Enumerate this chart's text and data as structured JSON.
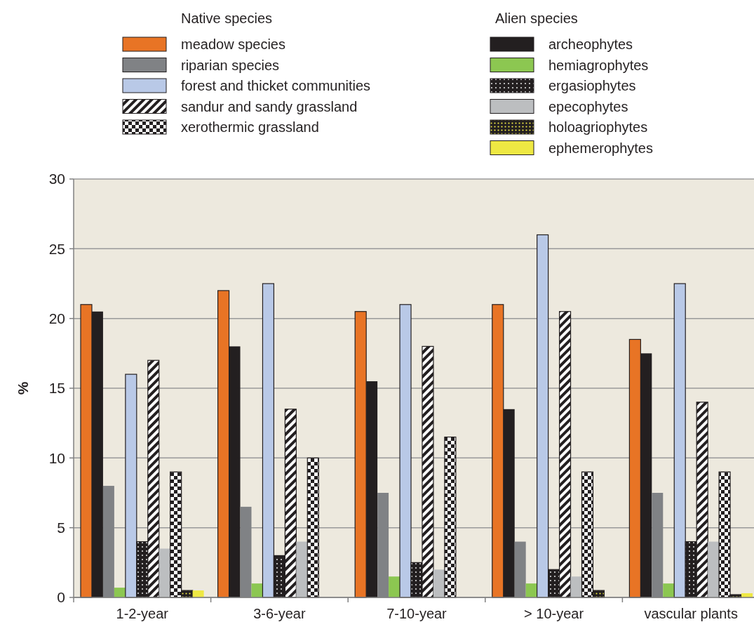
{
  "chart_data": {
    "type": "bar",
    "ylabel": "%",
    "categories": [
      "1-2-year",
      "3-6-year",
      "7-10-year",
      "> 10-year",
      "vascular plants"
    ],
    "series": [
      {
        "name": "meadow species",
        "color": "#e87425",
        "values": [
          21,
          22,
          20.5,
          21,
          18.5
        ]
      },
      {
        "name": "archeophytes",
        "color": "#231f20",
        "values": [
          20.5,
          18,
          15.5,
          13.5,
          17.5
        ]
      },
      {
        "name": "riparian species",
        "color": "#808285",
        "values": [
          8,
          6.5,
          7.5,
          4,
          7.5
        ]
      },
      {
        "name": "hemiagrophytes",
        "color": "#8cc751",
        "values": [
          0.7,
          1,
          1.5,
          1,
          1
        ]
      },
      {
        "name": "forest and thicket communities",
        "color": "#b9c9e7",
        "values": [
          16,
          22.5,
          21,
          26,
          22.5
        ]
      },
      {
        "name": "ergasiophytes",
        "color": "#231f20",
        "values": [
          4,
          3,
          2.5,
          2,
          4
        ]
      },
      {
        "name": "sandur and sandy grassland",
        "color": "#231f20",
        "values": [
          17,
          13.5,
          18,
          20.5,
          14
        ]
      },
      {
        "name": "epecophytes",
        "color": "#bcbec0",
        "values": [
          3.5,
          4,
          2,
          1.5,
          4
        ]
      },
      {
        "name": "xerothermic grassland",
        "color": "#231f20",
        "values": [
          9,
          10,
          11.5,
          9,
          9
        ]
      },
      {
        "name": "holoagriophytes",
        "color": "#231f20",
        "values": [
          0.5,
          0,
          0,
          0.5,
          0.2
        ]
      },
      {
        "name": "ephemerophytes",
        "color": "#eee843",
        "values": [
          0.5,
          0,
          0,
          0,
          0.3
        ]
      }
    ],
    "annotations": [
      "Native species",
      "Alien species"
    ],
    "ylim": [
      0,
      30
    ],
    "yticks": [
      0,
      5,
      10,
      15,
      20,
      25,
      30
    ],
    "grid": "y",
    "legend": "top"
  }
}
